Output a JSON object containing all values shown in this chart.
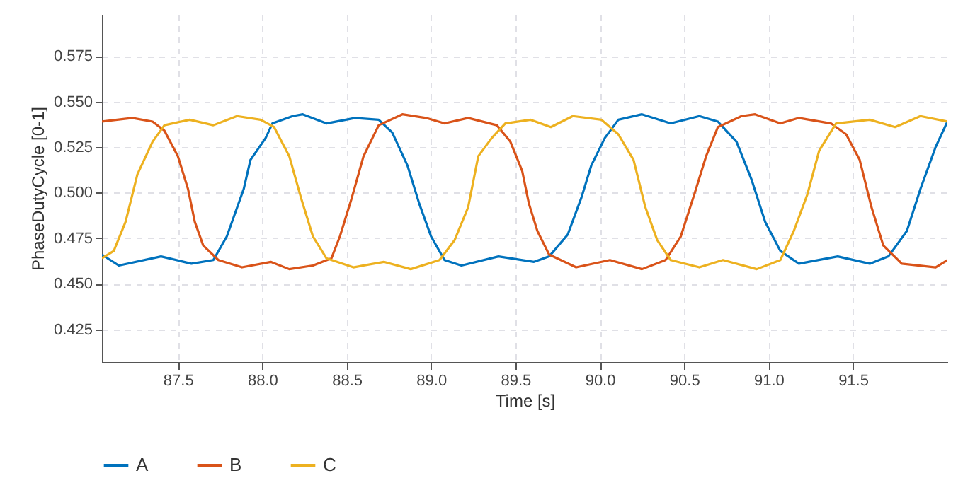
{
  "chart_data": {
    "type": "line",
    "xlabel": "Time [s]",
    "ylabel": "PhaseDutyCycle [0-1]",
    "xlim": [
      87.05,
      92.06
    ],
    "ylim": [
      0.407,
      0.598
    ],
    "xticks": [
      87.5,
      {
        "value": 88,
        "label": "88.0"
      },
      88.5,
      {
        "value": 89,
        "label": "89.0"
      },
      89.5,
      {
        "value": 90,
        "label": "90.0"
      },
      90.5,
      {
        "value": 91,
        "label": "91.0"
      },
      91.5
    ],
    "yticks": [
      0.425,
      {
        "value": 0.45,
        "label": "0.450"
      },
      0.475,
      {
        "value": 0.5,
        "label": "0.500"
      },
      0.525,
      {
        "value": 0.55,
        "label": "0.550"
      },
      0.575
    ],
    "grid": true,
    "legend": "bottom",
    "marker": "none",
    "line_style": "solid",
    "series": [
      {
        "name": "A",
        "color": "#0072bd",
        "x": [
          87.05,
          87.15,
          87.4,
          87.58,
          87.71,
          87.79,
          87.89,
          87.93,
          88.02,
          88.06,
          88.18,
          88.24,
          88.38,
          88.55,
          88.69,
          88.77,
          88.86,
          88.93,
          89.0,
          89.08,
          89.18,
          89.4,
          89.61,
          89.7,
          89.81,
          89.89,
          89.95,
          90.03,
          90.11,
          90.25,
          90.42,
          90.59,
          90.7,
          90.81,
          90.9,
          90.98,
          91.07,
          91.18,
          91.41,
          91.6,
          91.71,
          91.82,
          91.9,
          91.99,
          92.06
        ],
        "values": [
          0.466,
          0.46,
          0.465,
          0.461,
          0.463,
          0.476,
          0.502,
          0.518,
          0.53,
          0.538,
          0.542,
          0.543,
          0.538,
          0.541,
          0.54,
          0.533,
          0.515,
          0.494,
          0.476,
          0.463,
          0.46,
          0.465,
          0.462,
          0.465,
          0.477,
          0.497,
          0.515,
          0.53,
          0.54,
          0.543,
          0.538,
          0.542,
          0.539,
          0.528,
          0.507,
          0.484,
          0.468,
          0.461,
          0.465,
          0.461,
          0.465,
          0.479,
          0.502,
          0.525,
          0.539
        ]
      },
      {
        "name": "B",
        "color": "#d95319",
        "x": [
          87.05,
          87.23,
          87.35,
          87.42,
          87.5,
          87.56,
          87.6,
          87.65,
          87.74,
          87.88,
          88.05,
          88.16,
          88.3,
          88.41,
          88.46,
          88.53,
          88.6,
          88.69,
          88.83,
          88.97,
          89.08,
          89.22,
          89.39,
          89.47,
          89.54,
          89.58,
          89.63,
          89.7,
          89.86,
          90.06,
          90.25,
          90.39,
          90.48,
          90.56,
          90.63,
          90.7,
          90.84,
          90.92,
          91.07,
          91.18,
          91.37,
          91.46,
          91.54,
          91.61,
          91.68,
          91.79,
          91.99,
          92.06
        ],
        "values": [
          0.539,
          0.541,
          0.539,
          0.534,
          0.52,
          0.502,
          0.484,
          0.471,
          0.463,
          0.459,
          0.462,
          0.458,
          0.46,
          0.464,
          0.476,
          0.497,
          0.52,
          0.537,
          0.543,
          0.541,
          0.538,
          0.541,
          0.537,
          0.528,
          0.512,
          0.494,
          0.479,
          0.466,
          0.459,
          0.463,
          0.458,
          0.463,
          0.476,
          0.499,
          0.52,
          0.536,
          0.542,
          0.543,
          0.538,
          0.541,
          0.538,
          0.532,
          0.518,
          0.492,
          0.471,
          0.461,
          0.459,
          0.463
        ]
      },
      {
        "name": "C",
        "color": "#edb120",
        "x": [
          87.05,
          87.12,
          87.19,
          87.26,
          87.35,
          87.42,
          87.57,
          87.71,
          87.85,
          87.99,
          88.07,
          88.16,
          88.23,
          88.3,
          88.38,
          88.54,
          88.72,
          88.88,
          89.05,
          89.14,
          89.22,
          89.28,
          89.36,
          89.44,
          89.59,
          89.71,
          89.84,
          90.01,
          90.11,
          90.2,
          90.27,
          90.34,
          90.42,
          90.59,
          90.73,
          90.93,
          91.07,
          91.15,
          91.23,
          91.3,
          91.4,
          91.6,
          91.75,
          91.9,
          92.06
        ],
        "values": [
          0.464,
          0.468,
          0.484,
          0.51,
          0.528,
          0.537,
          0.54,
          0.537,
          0.542,
          0.54,
          0.536,
          0.52,
          0.497,
          0.476,
          0.464,
          0.459,
          0.462,
          0.458,
          0.463,
          0.474,
          0.492,
          0.52,
          0.53,
          0.538,
          0.54,
          0.536,
          0.542,
          0.54,
          0.532,
          0.518,
          0.492,
          0.474,
          0.463,
          0.459,
          0.463,
          0.458,
          0.463,
          0.479,
          0.499,
          0.523,
          0.538,
          0.54,
          0.536,
          0.542,
          0.539
        ]
      }
    ]
  }
}
